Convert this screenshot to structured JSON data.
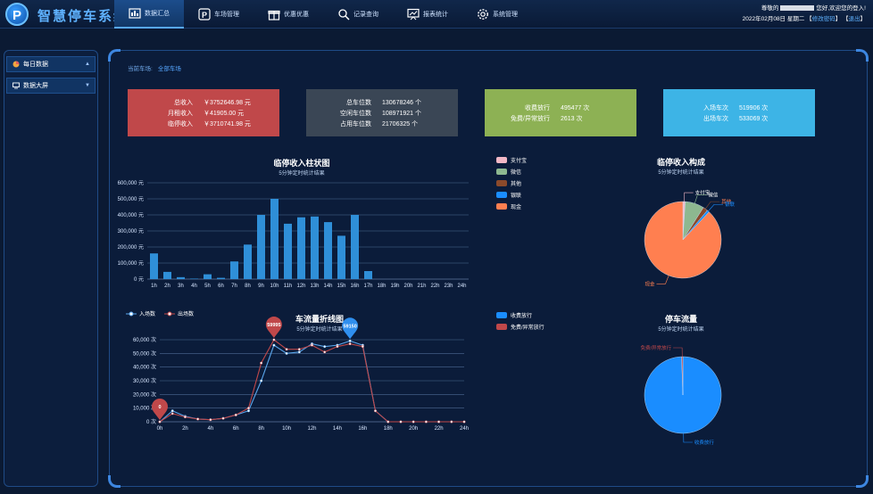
{
  "app": {
    "logo_letter": "P",
    "title": "智慧停车系统"
  },
  "nav": [
    {
      "label": "数据汇总",
      "icon": "dashboard-icon",
      "active": true
    },
    {
      "label": "车场管理",
      "icon": "parking-icon",
      "active": false
    },
    {
      "label": "优惠优惠",
      "icon": "gift-icon",
      "active": false
    },
    {
      "label": "记录查询",
      "icon": "search-icon",
      "active": false
    },
    {
      "label": "报表统计",
      "icon": "report-icon",
      "active": false
    },
    {
      "label": "系统管理",
      "icon": "gear-icon",
      "active": false
    }
  ],
  "user": {
    "greeting_prefix": "尊敬的",
    "greeting_suffix": "您好,欢迎您的登入!",
    "date": "2022年02月08日 星期二",
    "change_password": "修改密码",
    "logout": "退出"
  },
  "sidebar": [
    {
      "label": "每日数据",
      "icon": "pie-icon",
      "caret": "▲"
    },
    {
      "label": "数据大屏",
      "icon": "monitor-icon",
      "caret": "▼"
    }
  ],
  "breadcrumb": {
    "label": "当前车场:",
    "value": "全部车场"
  },
  "cards": [
    {
      "rows": [
        [
          "总收入",
          "￥3752646.98 元"
        ],
        [
          "月租收入",
          "￥41905.00 元"
        ],
        [
          "临停收入",
          "￥3710741.98 元"
        ]
      ]
    },
    {
      "rows": [
        [
          "总车位数",
          "130678246 个"
        ],
        [
          "空闲车位数",
          "108971921 个"
        ],
        [
          "占用车位数",
          "21706325 个"
        ]
      ]
    },
    {
      "rows": [
        [
          "收费放行",
          "495477 次"
        ],
        [
          "免费/异常放行",
          "2613 次"
        ]
      ]
    },
    {
      "rows": [
        [
          "入场车次",
          "519906 次"
        ],
        [
          "出场车次",
          "533069 次"
        ]
      ]
    }
  ],
  "charts": {
    "bar": {
      "title": "临停收入柱状图",
      "subtitle": "5分钟定时统计结果"
    },
    "income_pie": {
      "title": "临停收入构成",
      "subtitle": "5分钟定时统计结果"
    },
    "line": {
      "title": "车流量折线图",
      "subtitle": "5分钟定时统计结果"
    },
    "flow_pie": {
      "title": "停车流量",
      "subtitle": "5分钟定时统计结果"
    }
  },
  "colors": {
    "bar": "#2f8fd8",
    "in_line": "#5aa6ec",
    "out_line": "#c0484a",
    "alipay": "#f2b8c6",
    "wechat": "#8db890",
    "other": "#8b4a2b",
    "unionpay": "#1a8dff",
    "cash": "#ff7f50",
    "paid": "#1a8dff",
    "free": "#c0484a"
  },
  "chart_data": [
    {
      "type": "bar",
      "categories": [
        "1h",
        "2h",
        "3h",
        "4h",
        "5h",
        "6h",
        "7h",
        "8h",
        "9h",
        "10h",
        "11h",
        "12h",
        "13h",
        "14h",
        "15h",
        "16h",
        "17h",
        "18h",
        "19h",
        "20h",
        "21h",
        "22h",
        "23h",
        "24h"
      ],
      "values": [
        160000,
        45000,
        12000,
        3000,
        30000,
        8000,
        110000,
        215000,
        400000,
        500000,
        345000,
        385000,
        390000,
        355000,
        270000,
        400000,
        50000,
        0,
        0,
        0,
        0,
        0,
        0,
        0
      ],
      "ylim": [
        0,
        600000
      ],
      "yticks": [
        "0 元",
        "100,000 元",
        "200,000 元",
        "300,000 元",
        "400,000 元",
        "500,000 元",
        "600,000 元"
      ],
      "grid": true
    },
    {
      "type": "pie",
      "legend": [
        "支付宝",
        "微信",
        "其他",
        "银联",
        "现金"
      ],
      "values": [
        1,
        8,
        2,
        1,
        88
      ],
      "legend_position": "left"
    },
    {
      "type": "line",
      "x": [
        "0h",
        "1h",
        "2h",
        "3h",
        "4h",
        "5h",
        "6h",
        "7h",
        "8h",
        "9h",
        "10h",
        "11h",
        "12h",
        "13h",
        "14h",
        "15h",
        "16h",
        "17h",
        "18h",
        "19h",
        "20h",
        "21h",
        "22h",
        "23h",
        "24h"
      ],
      "xticks": [
        "0h",
        "2h",
        "4h",
        "6h",
        "8h",
        "10h",
        "12h",
        "14h",
        "16h",
        "18h",
        "20h",
        "22h",
        "24h"
      ],
      "series": [
        {
          "name": "入场数",
          "values": [
            0,
            8000,
            4000,
            2000,
            1500,
            2500,
            5000,
            8000,
            30000,
            56000,
            50000,
            51000,
            57000,
            55000,
            56000,
            59150,
            56000,
            8000,
            0,
            0,
            0,
            0,
            0,
            0,
            0
          ]
        },
        {
          "name": "出场数",
          "values": [
            0,
            6000,
            3500,
            2000,
            1500,
            2500,
            5000,
            10000,
            43000,
            59995,
            53000,
            53000,
            56000,
            51000,
            55000,
            57000,
            55000,
            8000,
            0,
            0,
            0,
            0,
            0,
            0,
            0
          ]
        }
      ],
      "ylim": [
        0,
        60000
      ],
      "yticks": [
        "0 次",
        "10,000 次",
        "20,000 次",
        "30,000 次",
        "40,000 次",
        "50,000 次",
        "60,000 次"
      ],
      "markers": [
        {
          "label": "59995",
          "series": 1,
          "index": 9
        },
        {
          "label": "59150",
          "series": 0,
          "index": 15
        },
        {
          "label": "0",
          "series": 1,
          "index": 0
        }
      ]
    },
    {
      "type": "pie",
      "legend": [
        "收费放行",
        "免费/异常放行"
      ],
      "values": [
        495477,
        2613
      ],
      "legend_position": "left"
    }
  ]
}
